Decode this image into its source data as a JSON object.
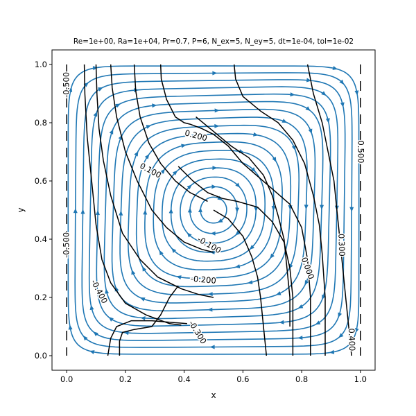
{
  "chart_data": {
    "type": "streamplot",
    "title": "Re=1e+00, Ra=1e+04, Pr=0.7, P=6, N_ex=5, N_ey=5, dt=1e-04, tol=1e-02",
    "xlabel": "x",
    "ylabel": "y",
    "xlim": [
      -0.05,
      1.05
    ],
    "ylim": [
      -0.05,
      1.05
    ],
    "xticks": [
      "0.0",
      "0.2",
      "0.4",
      "0.6",
      "0.8",
      "1.0"
    ],
    "yticks": [
      "0.0",
      "0.2",
      "0.4",
      "0.6",
      "0.8",
      "1.0"
    ],
    "grid": false,
    "streamline_color": "#1f77b4",
    "contour_color": "#000000",
    "flow_direction": "clockwise",
    "vortex_center": [
      0.5,
      0.5
    ],
    "contours": [
      {
        "level": "-0.500",
        "points": [
          [
            0.0,
            1.0
          ],
          [
            0.0,
            0.85
          ],
          [
            0.0,
            0.7
          ],
          [
            0.0,
            0.55
          ],
          [
            0.0,
            0.4
          ],
          [
            0.0,
            0.25
          ],
          [
            0.0,
            0.1
          ],
          [
            0.0,
            0.0
          ]
        ]
      },
      {
        "level": "-0.400",
        "points": [
          [
            0.06,
            1.0
          ],
          [
            0.062,
            0.9
          ],
          [
            0.07,
            0.75
          ],
          [
            0.085,
            0.6
          ],
          [
            0.1,
            0.45
          ],
          [
            0.12,
            0.33
          ],
          [
            0.15,
            0.25
          ],
          [
            0.2,
            0.18
          ],
          [
            0.27,
            0.14
          ],
          [
            0.35,
            0.11
          ],
          [
            0.39,
            0.105
          ]
        ]
      },
      {
        "level": "-0.300",
        "points": [
          [
            0.1,
            1.0
          ],
          [
            0.103,
            0.9
          ],
          [
            0.11,
            0.78
          ],
          [
            0.125,
            0.67
          ],
          [
            0.15,
            0.55
          ],
          [
            0.19,
            0.42
          ],
          [
            0.25,
            0.33
          ],
          [
            0.31,
            0.27
          ],
          [
            0.39,
            0.23
          ],
          [
            0.45,
            0.21
          ],
          [
            0.5,
            0.2
          ]
        ]
      },
      {
        "level": "-0.300",
        "points": [
          [
            0.14,
            0.0
          ],
          [
            0.15,
            0.06
          ],
          [
            0.17,
            0.1
          ],
          [
            0.22,
            0.12
          ],
          [
            0.29,
            0.12
          ],
          [
            0.35,
            0.115
          ],
          [
            0.41,
            0.11
          ]
        ]
      },
      {
        "level": "-0.200",
        "points": [
          [
            0.15,
            1.0
          ],
          [
            0.155,
            0.92
          ],
          [
            0.17,
            0.82
          ],
          [
            0.2,
            0.7
          ],
          [
            0.24,
            0.6
          ],
          [
            0.29,
            0.5
          ],
          [
            0.34,
            0.44
          ],
          [
            0.4,
            0.39
          ],
          [
            0.46,
            0.365
          ],
          [
            0.5,
            0.355
          ]
        ]
      },
      {
        "level": "-0.200",
        "points": [
          [
            0.18,
            0.0
          ],
          [
            0.18,
            0.05
          ],
          [
            0.19,
            0.08
          ],
          [
            0.23,
            0.09
          ],
          [
            0.29,
            0.1
          ],
          [
            0.32,
            0.14
          ],
          [
            0.35,
            0.2
          ],
          [
            0.38,
            0.24
          ]
        ]
      },
      {
        "level": "-0.100",
        "points": [
          [
            0.23,
            1.0
          ],
          [
            0.235,
            0.91
          ],
          [
            0.25,
            0.82
          ],
          [
            0.28,
            0.73
          ],
          [
            0.32,
            0.66
          ],
          [
            0.37,
            0.6
          ],
          [
            0.42,
            0.56
          ],
          [
            0.48,
            0.53
          ]
        ]
      },
      {
        "level": "0.000",
        "points": [
          [
            0.32,
            1.0
          ],
          [
            0.322,
            0.95
          ],
          [
            0.34,
            0.88
          ],
          [
            0.37,
            0.82
          ],
          [
            0.4,
            0.8
          ],
          [
            0.42,
            0.795
          ],
          [
            0.46,
            0.78
          ],
          [
            0.5,
            0.76
          ],
          [
            0.55,
            0.72
          ],
          [
            0.6,
            0.66
          ],
          [
            0.68,
            0.59
          ],
          [
            0.76,
            0.52
          ],
          [
            0.8,
            0.44
          ],
          [
            0.82,
            0.33
          ],
          [
            0.83,
            0.2
          ],
          [
            0.83,
            0.1
          ],
          [
            0.83,
            0.0
          ]
        ]
      },
      {
        "level": "0.100",
        "points": [
          [
            0.38,
            0.65
          ],
          [
            0.43,
            0.6
          ],
          [
            0.48,
            0.56
          ],
          [
            0.53,
            0.54
          ],
          [
            0.58,
            0.53
          ],
          [
            0.65,
            0.51
          ],
          [
            0.7,
            0.46
          ],
          [
            0.74,
            0.39
          ],
          [
            0.76,
            0.3
          ],
          [
            0.77,
            0.2
          ],
          [
            0.77,
            0.1
          ],
          [
            0.77,
            0.0
          ]
        ]
      },
      {
        "level": "0.200",
        "points": [
          [
            0.44,
            0.82
          ],
          [
            0.5,
            0.77
          ],
          [
            0.56,
            0.72
          ],
          [
            0.62,
            0.68
          ],
          [
            0.67,
            0.62
          ],
          [
            0.7,
            0.55
          ],
          [
            0.72,
            0.48
          ],
          [
            0.74,
            0.4
          ],
          [
            0.75,
            0.3
          ],
          [
            0.76,
            0.2
          ],
          [
            0.76,
            0.1
          ]
        ]
      },
      {
        "level": "0.200",
        "points": [
          [
            0.5,
            0.5
          ],
          [
            0.55,
            0.47
          ],
          [
            0.6,
            0.41
          ],
          [
            0.63,
            0.34
          ],
          [
            0.65,
            0.27
          ],
          [
            0.66,
            0.2
          ],
          [
            0.67,
            0.1
          ],
          [
            0.68,
            0.0
          ]
        ]
      },
      {
        "level": "0.300",
        "points": [
          [
            0.57,
            1.0
          ],
          [
            0.575,
            0.95
          ],
          [
            0.6,
            0.89
          ],
          [
            0.66,
            0.84
          ],
          [
            0.72,
            0.8
          ],
          [
            0.77,
            0.74
          ],
          [
            0.81,
            0.66
          ],
          [
            0.84,
            0.55
          ],
          [
            0.86,
            0.45
          ],
          [
            0.87,
            0.35
          ],
          [
            0.88,
            0.2
          ],
          [
            0.88,
            0.1
          ],
          [
            0.88,
            0.0
          ]
        ]
      },
      {
        "level": "0.400",
        "points": [
          [
            0.82,
            1.0
          ],
          [
            0.84,
            0.9
          ],
          [
            0.87,
            0.8
          ],
          [
            0.89,
            0.7
          ],
          [
            0.91,
            0.6
          ],
          [
            0.92,
            0.5
          ],
          [
            0.93,
            0.4
          ],
          [
            0.94,
            0.3
          ],
          [
            0.95,
            0.2
          ],
          [
            0.96,
            0.1
          ],
          [
            0.97,
            0.0
          ]
        ]
      },
      {
        "level": "0.500",
        "points": [
          [
            1.0,
            1.0
          ],
          [
            1.0,
            0.85
          ],
          [
            1.0,
            0.7
          ],
          [
            1.0,
            0.55
          ],
          [
            1.0,
            0.4
          ],
          [
            1.0,
            0.25
          ],
          [
            1.0,
            0.1
          ],
          [
            1.0,
            0.0
          ]
        ]
      }
    ],
    "contour_labels": [
      {
        "text": "-0.500",
        "x": 0.0,
        "y": 0.93,
        "angle": -90
      },
      {
        "text": "-0.500",
        "x": 0.0,
        "y": 0.38,
        "angle": -90
      },
      {
        "text": "-0.400",
        "x": 0.11,
        "y": 0.22,
        "angle": 62
      },
      {
        "text": "-0.300",
        "x": 0.445,
        "y": 0.08,
        "angle": 58
      },
      {
        "text": "-0.200",
        "x": 0.465,
        "y": 0.26,
        "angle": 5
      },
      {
        "text": "-0.100",
        "x": 0.485,
        "y": 0.38,
        "angle": 30
      },
      {
        "text": "0.000",
        "x": 0.82,
        "y": 0.3,
        "angle": 70
      },
      {
        "text": "0.100",
        "x": 0.285,
        "y": 0.635,
        "angle": 28
      },
      {
        "text": "0.200",
        "x": 0.44,
        "y": 0.755,
        "angle": 15
      },
      {
        "text": "0.300",
        "x": 0.935,
        "y": 0.38,
        "angle": 88
      },
      {
        "text": "0.400",
        "x": 0.97,
        "y": 0.055,
        "angle": 88
      },
      {
        "text": "0.500",
        "x": 1.0,
        "y": 0.7,
        "angle": 90
      }
    ]
  }
}
